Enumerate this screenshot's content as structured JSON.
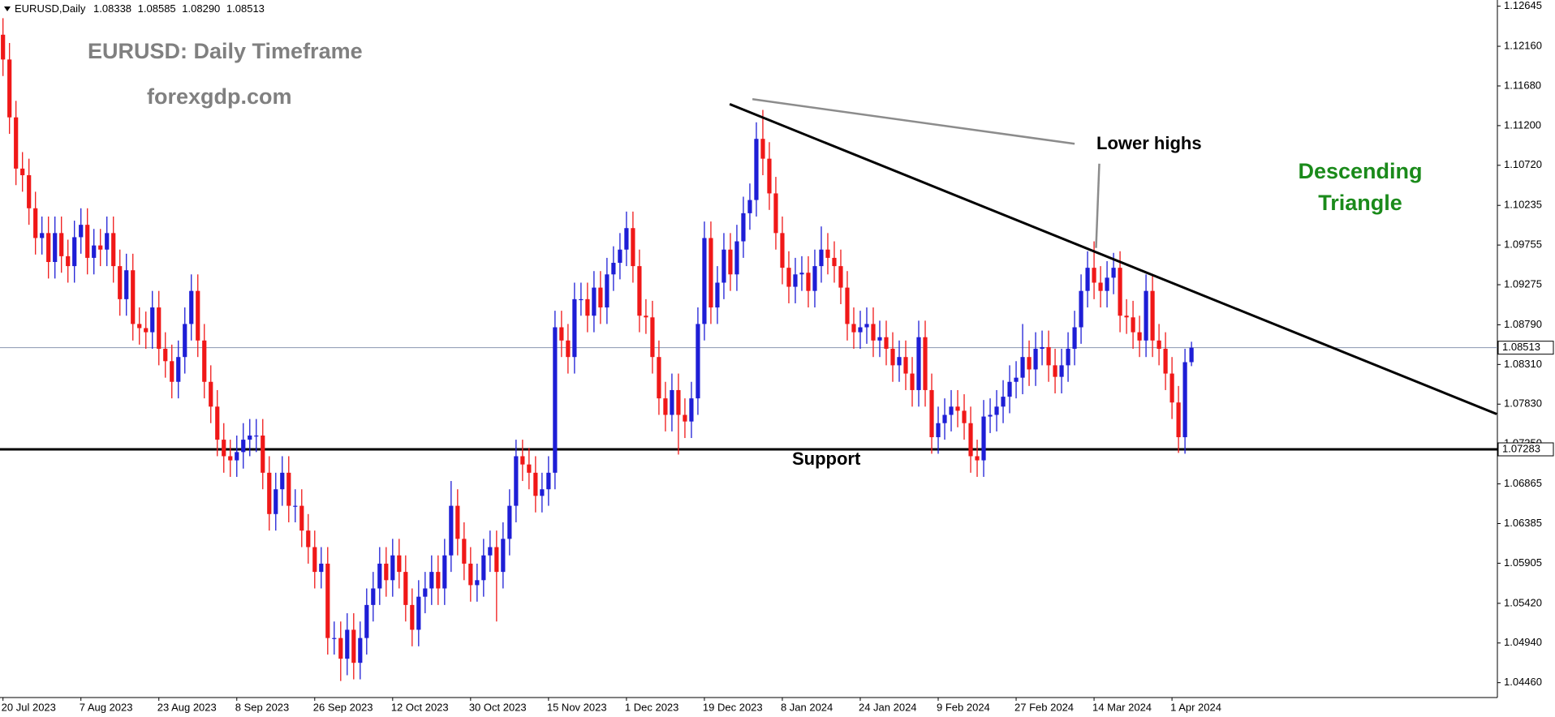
{
  "chart_data": {
    "type": "candlestick",
    "title": "EURUSD: Daily Timeframe",
    "subtitle": "forexgdp.com",
    "symbol": "EURUSD,Daily",
    "last_bar_labels": [
      "1.08338",
      "1.08585",
      "1.08290",
      "1.08513"
    ],
    "annotation": "Lower highs",
    "pattern_label": [
      "Descending",
      "Triangle"
    ],
    "up_color": "#1e1ed6",
    "down_color": "#f01818",
    "categories": [
      "20 Jul 2023",
      null,
      null,
      null,
      null,
      null,
      null,
      null,
      null,
      null,
      null,
      null,
      "7 Aug 2023",
      null,
      null,
      null,
      null,
      null,
      null,
      null,
      null,
      null,
      null,
      null,
      "23 Aug 2023",
      null,
      null,
      null,
      null,
      null,
      null,
      null,
      null,
      null,
      null,
      null,
      "8 Sep 2023",
      null,
      null,
      null,
      null,
      null,
      null,
      null,
      null,
      null,
      null,
      null,
      "26 Sep 2023",
      null,
      null,
      null,
      null,
      null,
      null,
      null,
      null,
      null,
      null,
      null,
      "12 Oct 2023",
      null,
      null,
      null,
      null,
      null,
      null,
      null,
      null,
      null,
      null,
      null,
      "30 Oct 2023",
      null,
      null,
      null,
      null,
      null,
      null,
      null,
      null,
      null,
      null,
      null,
      "15 Nov 2023",
      null,
      null,
      null,
      null,
      null,
      null,
      null,
      null,
      null,
      null,
      null,
      "1 Dec 2023",
      null,
      null,
      null,
      null,
      null,
      null,
      null,
      null,
      null,
      null,
      null,
      "19 Dec 2023",
      null,
      null,
      null,
      null,
      null,
      null,
      null,
      null,
      null,
      null,
      null,
      "8 Jan 2024",
      null,
      null,
      null,
      null,
      null,
      null,
      null,
      null,
      null,
      null,
      null,
      "24 Jan 2024",
      null,
      null,
      null,
      null,
      null,
      null,
      null,
      null,
      null,
      null,
      null,
      "9 Feb 2024",
      null,
      null,
      null,
      null,
      null,
      null,
      null,
      null,
      null,
      null,
      null,
      "27 Feb 2024",
      null,
      null,
      null,
      null,
      null,
      null,
      null,
      null,
      null,
      null,
      null,
      "14 Mar 2024",
      null,
      null,
      null,
      null,
      null,
      null,
      null,
      null,
      null,
      null,
      null,
      "1 Apr 2024",
      null,
      null,
      null
    ],
    "open": [
      1.123,
      1.12,
      1.113,
      1.1068,
      1.106,
      1.102,
      1.0984,
      1.099,
      1.0955,
      1.099,
      1.0962,
      1.095,
      1.0985,
      1.1,
      1.096,
      1.0975,
      1.097,
      1.099,
      1.095,
      1.091,
      1.0945,
      1.088,
      1.0875,
      1.087,
      1.09,
      1.085,
      1.0835,
      1.081,
      1.084,
      1.088,
      1.092,
      1.086,
      1.081,
      1.078,
      1.074,
      1.072,
      1.0715,
      1.0725,
      1.074,
      1.0745,
      1.0745,
      1.07,
      1.065,
      1.068,
      1.07,
      1.066,
      1.066,
      1.063,
      1.061,
      1.058,
      1.059,
      1.05,
      1.05,
      1.0475,
      1.051,
      1.047,
      1.05,
      1.054,
      1.056,
      1.059,
      1.057,
      1.06,
      1.058,
      1.054,
      1.051,
      1.055,
      1.056,
      1.058,
      1.056,
      1.06,
      1.066,
      1.062,
      1.059,
      1.0564,
      1.057,
      1.06,
      1.061,
      1.058,
      1.062,
      1.066,
      1.072,
      1.071,
      1.07,
      1.0672,
      1.068,
      1.07,
      1.0876,
      1.086,
      1.084,
      1.091,
      1.091,
      1.089,
      1.0924,
      1.09,
      1.094,
      1.0954,
      1.097,
      1.0996,
      1.095,
      1.089,
      1.0888,
      1.084,
      1.079,
      1.077,
      1.08,
      1.077,
      1.0762,
      1.079,
      1.088,
      1.0984,
      1.09,
      1.093,
      1.097,
      1.094,
      1.098,
      1.1014,
      1.103,
      1.1104,
      1.108,
      1.1038,
      1.099,
      1.0948,
      1.0925,
      1.094,
      1.0942,
      1.092,
      1.095,
      1.097,
      1.096,
      1.095,
      1.0924,
      1.088,
      1.087,
      1.0876,
      1.088,
      1.086,
      1.0864,
      1.085,
      1.083,
      1.084,
      1.082,
      1.08,
      1.0864,
      1.08,
      1.0743,
      1.076,
      1.077,
      1.078,
      1.0775,
      1.076,
      1.072,
      1.0715,
      1.0768,
      1.077,
      1.078,
      1.0792,
      1.081,
      1.0815,
      1.084,
      1.0825,
      1.085,
      1.0852,
      1.083,
      1.0816,
      1.083,
      1.085,
      1.0876,
      1.092,
      1.0948,
      1.093,
      1.092,
      1.0936,
      1.0948,
      1.089,
      1.0888,
      1.087,
      1.086,
      1.092,
      1.086,
      1.085,
      1.082,
      1.0785,
      1.0743,
      1.08338
    ],
    "high": [
      1.125,
      1.122,
      1.115,
      1.1088,
      1.108,
      1.104,
      1.101,
      1.101,
      1.101,
      1.101,
      1.0982,
      1.1005,
      1.102,
      1.102,
      1.0995,
      1.0995,
      1.101,
      1.101,
      1.097,
      1.0965,
      1.0965,
      1.09,
      1.0895,
      1.092,
      1.092,
      1.087,
      1.0855,
      1.086,
      1.09,
      1.094,
      1.094,
      1.088,
      1.083,
      1.08,
      1.076,
      1.074,
      1.0745,
      1.076,
      1.0765,
      1.0765,
      1.0765,
      1.072,
      1.07,
      1.072,
      1.072,
      1.068,
      1.068,
      1.065,
      1.063,
      1.061,
      1.061,
      1.052,
      1.052,
      1.053,
      1.053,
      1.052,
      1.056,
      1.058,
      1.061,
      1.061,
      1.062,
      1.062,
      1.06,
      1.056,
      1.057,
      1.058,
      1.06,
      1.06,
      1.062,
      1.069,
      1.068,
      1.064,
      1.061,
      1.059,
      1.062,
      1.063,
      1.063,
      1.064,
      1.068,
      1.074,
      1.074,
      1.073,
      1.072,
      1.07,
      1.072,
      1.0896,
      1.0896,
      1.088,
      1.093,
      1.093,
      1.093,
      1.0944,
      1.0944,
      1.096,
      1.0974,
      1.099,
      1.1016,
      1.1016,
      1.097,
      1.091,
      1.0908,
      1.086,
      1.081,
      1.082,
      1.082,
      1.079,
      1.081,
      1.09,
      1.1004,
      1.1004,
      1.095,
      1.099,
      1.099,
      1.1,
      1.1034,
      1.105,
      1.1124,
      1.1139,
      1.11,
      1.1058,
      1.101,
      1.0968,
      1.096,
      1.0962,
      1.0962,
      1.097,
      1.0998,
      1.099,
      1.098,
      1.097,
      1.0944,
      1.09,
      1.0896,
      1.09,
      1.09,
      1.0884,
      1.0884,
      1.087,
      1.086,
      1.086,
      1.084,
      1.0884,
      1.0884,
      1.082,
      1.078,
      1.079,
      1.08,
      1.08,
      1.0795,
      1.078,
      1.074,
      1.0788,
      1.079,
      1.08,
      1.0812,
      1.083,
      1.0835,
      1.088,
      1.086,
      1.087,
      1.0872,
      1.0872,
      1.085,
      1.085,
      1.087,
      1.0896,
      1.094,
      1.0968,
      1.098,
      1.095,
      1.0956,
      1.0966,
      1.0968,
      1.091,
      1.0908,
      1.089,
      1.094,
      1.094,
      1.088,
      1.087,
      1.084,
      1.0805,
      1.085,
      1.08585
    ],
    "low": [
      1.118,
      1.111,
      1.1048,
      1.104,
      1.1,
      1.0964,
      1.0964,
      1.0935,
      1.0935,
      1.0942,
      1.093,
      1.093,
      1.0965,
      1.094,
      1.094,
      1.095,
      1.095,
      1.093,
      1.089,
      1.089,
      1.086,
      1.0855,
      1.085,
      1.085,
      1.083,
      1.0815,
      1.079,
      1.079,
      1.082,
      1.086,
      1.084,
      1.079,
      1.076,
      1.072,
      1.07,
      1.0695,
      1.0695,
      1.0705,
      1.072,
      1.0725,
      1.068,
      1.063,
      1.063,
      1.066,
      1.064,
      1.064,
      1.061,
      1.059,
      1.056,
      1.056,
      1.048,
      1.048,
      1.0448,
      1.0455,
      1.045,
      1.045,
      1.048,
      1.052,
      1.054,
      1.055,
      1.055,
      1.056,
      1.052,
      1.049,
      1.049,
      1.053,
      1.054,
      1.054,
      1.054,
      1.058,
      1.06,
      1.057,
      1.0544,
      1.0544,
      1.055,
      1.058,
      1.052,
      1.056,
      1.06,
      1.064,
      1.069,
      1.068,
      1.0652,
      1.0652,
      1.066,
      1.068,
      1.084,
      1.082,
      1.082,
      1.089,
      1.087,
      1.087,
      1.088,
      1.088,
      1.092,
      1.0934,
      1.095,
      1.093,
      1.087,
      1.0868,
      1.082,
      1.077,
      1.075,
      1.075,
      1.0722,
      1.0742,
      1.0742,
      1.077,
      1.086,
      1.088,
      1.088,
      1.091,
      1.092,
      1.092,
      1.096,
      1.0994,
      1.101,
      1.106,
      1.1018,
      1.097,
      1.0928,
      1.0905,
      1.0905,
      1.092,
      1.09,
      1.09,
      1.093,
      1.094,
      1.093,
      1.0904,
      1.086,
      1.085,
      1.085,
      1.0856,
      1.084,
      1.084,
      1.083,
      1.081,
      1.081,
      1.08,
      1.078,
      1.078,
      1.078,
      1.0723,
      1.0723,
      1.074,
      1.075,
      1.0755,
      1.074,
      1.07,
      1.0695,
      1.0695,
      1.0748,
      1.075,
      1.076,
      1.0772,
      1.079,
      1.0795,
      1.0805,
      1.0805,
      1.083,
      1.081,
      1.0796,
      1.0796,
      1.081,
      1.083,
      1.0856,
      1.09,
      1.091,
      1.09,
      1.09,
      1.0916,
      1.087,
      1.0868,
      1.085,
      1.084,
      1.084,
      1.084,
      1.083,
      1.08,
      1.0765,
      1.0724,
      1.0723,
      1.0829
    ],
    "close": [
      1.12,
      1.113,
      1.1068,
      1.106,
      1.102,
      1.0984,
      1.099,
      1.0955,
      1.099,
      1.0962,
      1.095,
      1.0985,
      1.1,
      1.096,
      1.0975,
      1.097,
      1.099,
      1.095,
      1.091,
      1.0945,
      1.088,
      1.0875,
      1.087,
      1.09,
      1.085,
      1.0835,
      1.081,
      1.084,
      1.088,
      1.092,
      1.086,
      1.081,
      1.078,
      1.074,
      1.072,
      1.0715,
      1.0725,
      1.074,
      1.0745,
      1.0745,
      1.07,
      1.065,
      1.068,
      1.07,
      1.066,
      1.066,
      1.063,
      1.061,
      1.058,
      1.059,
      1.05,
      1.05,
      1.0475,
      1.051,
      1.047,
      1.05,
      1.054,
      1.056,
      1.059,
      1.057,
      1.06,
      1.058,
      1.054,
      1.051,
      1.055,
      1.056,
      1.058,
      1.056,
      1.06,
      1.066,
      1.062,
      1.059,
      1.0564,
      1.057,
      1.06,
      1.061,
      1.058,
      1.062,
      1.066,
      1.072,
      1.071,
      1.07,
      1.0672,
      1.068,
      1.07,
      1.0876,
      1.086,
      1.084,
      1.091,
      1.091,
      1.089,
      1.0924,
      1.09,
      1.094,
      1.0954,
      1.097,
      1.0996,
      1.095,
      1.089,
      1.0888,
      1.084,
      1.079,
      1.077,
      1.08,
      1.077,
      1.0762,
      1.079,
      1.088,
      1.0984,
      1.09,
      1.093,
      1.097,
      1.094,
      1.098,
      1.1014,
      1.103,
      1.1104,
      1.108,
      1.1038,
      1.099,
      1.0948,
      1.0925,
      1.094,
      1.0942,
      1.092,
      1.095,
      1.097,
      1.096,
      1.095,
      1.0924,
      1.088,
      1.087,
      1.0876,
      1.088,
      1.086,
      1.0864,
      1.085,
      1.083,
      1.084,
      1.082,
      1.08,
      1.0864,
      1.08,
      1.0743,
      1.076,
      1.077,
      1.078,
      1.0775,
      1.076,
      1.072,
      1.0715,
      1.0768,
      1.077,
      1.078,
      1.0792,
      1.081,
      1.0815,
      1.084,
      1.0825,
      1.085,
      1.0852,
      1.083,
      1.0816,
      1.083,
      1.085,
      1.0876,
      1.092,
      1.0948,
      1.093,
      1.092,
      1.0936,
      1.0948,
      1.089,
      1.0888,
      1.087,
      1.086,
      1.092,
      1.086,
      1.085,
      1.082,
      1.0785,
      1.0743,
      1.08338,
      1.08513
    ],
    "xlim": [
      -0.46,
      230.1
    ],
    "ylim": [
      1.0428,
      1.1272
    ],
    "yticks": [
      1.12645,
      {
        "value": 1.1216,
        "label": "1.12160"
      },
      {
        "value": 1.1168,
        "label": "1.11680"
      },
      {
        "value": 1.112,
        "label": "1.11200"
      },
      {
        "value": 1.1072,
        "label": "1.10720"
      },
      1.10235,
      1.09755,
      1.09275,
      {
        "value": 1.0879,
        "label": "1.08790"
      },
      {
        "value": 1.0831,
        "label": "1.08310"
      },
      {
        "value": 1.0783,
        "label": "1.07830"
      },
      {
        "value": 1.0735,
        "label": "1.07350"
      },
      1.06865,
      1.06385,
      1.05905,
      {
        "value": 1.0542,
        "label": "1.05420"
      },
      {
        "value": 1.0494,
        "label": "1.04940"
      },
      {
        "value": 1.0446,
        "label": "1.04460"
      }
    ],
    "support": {
      "label": "Support",
      "value": 1.07283
    },
    "trendlines": [
      {
        "x": [
          111.9,
          230
        ],
        "y": [
          1.1146,
          1.0771
        ],
        "color": "#000000"
      },
      {
        "x": [
          115.4,
          165.0
        ],
        "y": [
          1.1152,
          1.1098
        ],
        "color": "#8c8c8c"
      },
      {
        "x": [
          168.8,
          168.3
        ],
        "y": [
          1.1074,
          1.0972
        ],
        "color": "#8c8c8c"
      }
    ]
  }
}
